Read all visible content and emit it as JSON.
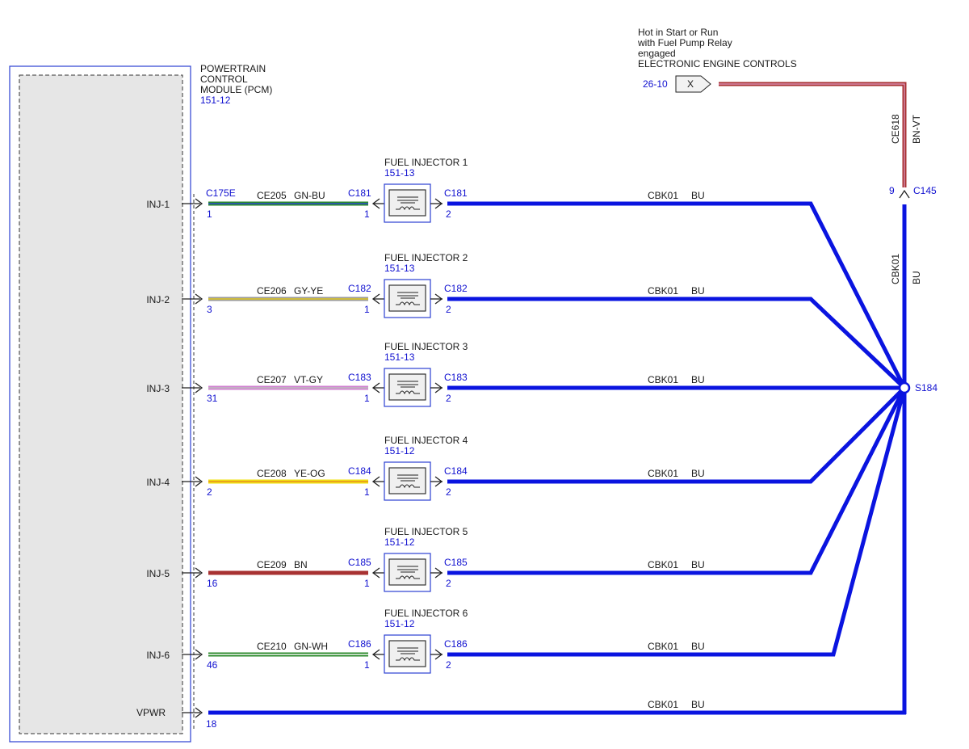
{
  "colors": {
    "module_border": "#2b3fd1",
    "module_fill": "#e6e6e6",
    "ground_wire": "#0a14e0",
    "power_wire": "#a83232",
    "label_blue": "#1010d0",
    "label_black": "#1a1a1a"
  },
  "pcm": {
    "name_lines": [
      "POWERTRAIN",
      "CONTROL",
      "MODULE (PCM)"
    ],
    "ref": "151-12"
  },
  "power_source": {
    "lines": [
      "Hot in Start or Run",
      "with Fuel Pump Relay",
      "engaged",
      "ELECTRONIC ENGINE CONTROLS"
    ],
    "page_ref": "26-10",
    "tag": "X",
    "wire_circuit": "CE618",
    "wire_color": "BN-VT",
    "connector": "C145",
    "pin": "9"
  },
  "ground_bus": {
    "circuit": "CBK01",
    "color": "BU",
    "splice": "S184"
  },
  "rows": [
    {
      "signal": "INJ-1",
      "pcm_conn": "C175E",
      "pcm_pin": "1",
      "circuit": "CE205",
      "color": "GN-BU",
      "colors": [
        "#2a8a2a",
        "#2a4ad0"
      ],
      "inj_conn": "C181",
      "inj_pin_in": "1",
      "inj_pin_out": "2",
      "injector": "FUEL INJECTOR 1",
      "injector_ref": "151-13",
      "bus_circuit": "CBK01",
      "bus_color": "BU"
    },
    {
      "signal": "INJ-2",
      "pcm_conn": "",
      "pcm_pin": "3",
      "circuit": "CE206",
      "color": "GY-YE",
      "colors": [
        "#9a9a9a",
        "#e0c820"
      ],
      "inj_conn": "C182",
      "inj_pin_in": "1",
      "inj_pin_out": "2",
      "injector": "FUEL INJECTOR 2",
      "injector_ref": "151-13",
      "bus_circuit": "CBK01",
      "bus_color": "BU"
    },
    {
      "signal": "INJ-3",
      "pcm_conn": "",
      "pcm_pin": "31",
      "circuit": "CE207",
      "color": "VT-GY",
      "colors": [
        "#d080d0",
        "#bdbdbd"
      ],
      "inj_conn": "C183",
      "inj_pin_in": "1",
      "inj_pin_out": "2",
      "injector": "FUEL INJECTOR 3",
      "injector_ref": "151-13",
      "bus_circuit": "CBK01",
      "bus_color": "BU"
    },
    {
      "signal": "INJ-4",
      "pcm_conn": "",
      "pcm_pin": "2",
      "circuit": "CE208",
      "color": "YE-OG",
      "colors": [
        "#f0e010",
        "#e89020"
      ],
      "inj_conn": "C184",
      "inj_pin_in": "1",
      "inj_pin_out": "2",
      "injector": "FUEL INJECTOR 4",
      "injector_ref": "151-12",
      "bus_circuit": "CBK01",
      "bus_color": "BU"
    },
    {
      "signal": "INJ-5",
      "pcm_conn": "",
      "pcm_pin": "16",
      "circuit": "CE209",
      "color": "BN",
      "colors": [
        "#a83232",
        "#a83232"
      ],
      "inj_conn": "C185",
      "inj_pin_in": "1",
      "inj_pin_out": "2",
      "injector": "FUEL INJECTOR 5",
      "injector_ref": "151-12",
      "bus_circuit": "CBK01",
      "bus_color": "BU"
    },
    {
      "signal": "INJ-6",
      "pcm_conn": "",
      "pcm_pin": "46",
      "circuit": "CE210",
      "color": "GN-WH",
      "colors": [
        "#2a8a2a",
        "#f4f4f4"
      ],
      "inj_conn": "C186",
      "inj_pin_in": "1",
      "inj_pin_out": "2",
      "injector": "FUEL INJECTOR 6",
      "injector_ref": "151-12",
      "bus_circuit": "CBK01",
      "bus_color": "BU"
    }
  ],
  "vpwr": {
    "signal": "VPWR",
    "pin": "18",
    "circuit": "CBK01",
    "color": "BU"
  }
}
